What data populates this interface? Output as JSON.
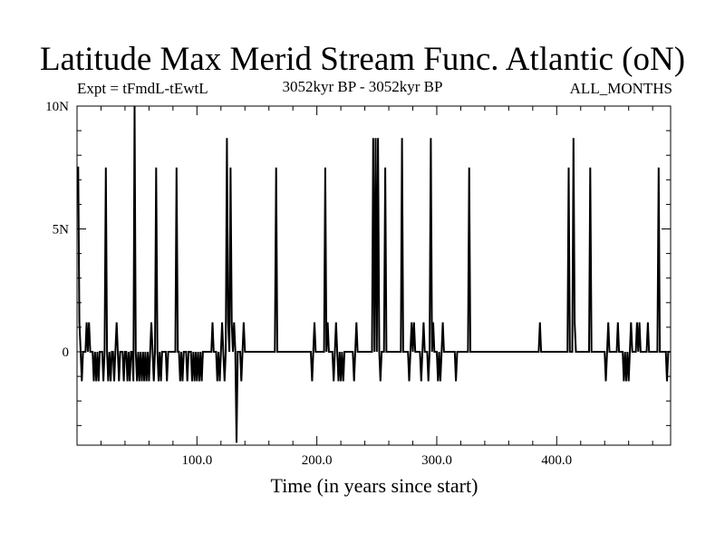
{
  "chart_data": {
    "type": "line",
    "title": "Latitude Max Merid Stream Func. Atlantic (oN)",
    "subtitle_left": "Expt = tFmdL-tEwtL",
    "subtitle_center": "3052kyr BP - 3052kyr BP",
    "subtitle_right": "ALL_MONTHS",
    "xlabel": "Time (in years since start)",
    "ylabel": "",
    "xlim": [
      0,
      495
    ],
    "ylim": [
      -3.8,
      10
    ],
    "x_ticks": [
      {
        "value": 100,
        "label": "100.0"
      },
      {
        "value": 200,
        "label": "200.0"
      },
      {
        "value": 300,
        "label": "300.0"
      },
      {
        "value": 400,
        "label": "400.0"
      }
    ],
    "y_ticks": [
      {
        "value": 0,
        "label": "0"
      },
      {
        "value": 5,
        "label": "5N"
      },
      {
        "value": 10,
        "label": "10N"
      }
    ],
    "grid": false,
    "series": [
      {
        "color": "#000000",
        "points": [
          [
            0,
            7.5
          ],
          [
            1,
            7.5
          ],
          [
            2,
            1.2
          ],
          [
            3,
            0
          ],
          [
            4,
            -1.2
          ],
          [
            5,
            0
          ],
          [
            7,
            0
          ],
          [
            8,
            1.2
          ],
          [
            9,
            0
          ],
          [
            10,
            1.2
          ],
          [
            11,
            0
          ],
          [
            13,
            0
          ],
          [
            14,
            -1.2
          ],
          [
            15,
            0
          ],
          [
            16,
            -1.2
          ],
          [
            17,
            0
          ],
          [
            18,
            -1.2
          ],
          [
            19,
            0
          ],
          [
            21,
            0
          ],
          [
            22,
            -1.2
          ],
          [
            23,
            0
          ],
          [
            24,
            7.5
          ],
          [
            25,
            0
          ],
          [
            26,
            -1.2
          ],
          [
            27,
            0
          ],
          [
            28,
            -1.2
          ],
          [
            29,
            0
          ],
          [
            30,
            0
          ],
          [
            31,
            -1.2
          ],
          [
            32,
            0
          ],
          [
            33,
            1.2
          ],
          [
            34,
            0
          ],
          [
            35,
            -1.2
          ],
          [
            36,
            0
          ],
          [
            38,
            0
          ],
          [
            39,
            -1.2
          ],
          [
            40,
            0
          ],
          [
            41,
            0
          ],
          [
            42,
            -1.2
          ],
          [
            43,
            0
          ],
          [
            44,
            -1.2
          ],
          [
            45,
            0
          ],
          [
            46,
            0
          ],
          [
            47,
            -1.2
          ],
          [
            48,
            10
          ],
          [
            49,
            0
          ],
          [
            50,
            -1.2
          ],
          [
            51,
            0
          ],
          [
            52,
            -1.2
          ],
          [
            53,
            0
          ],
          [
            54,
            -1.2
          ],
          [
            55,
            0
          ],
          [
            56,
            -1.2
          ],
          [
            57,
            0
          ],
          [
            58,
            -1.2
          ],
          [
            59,
            0
          ],
          [
            60,
            -1.2
          ],
          [
            61,
            0
          ],
          [
            62,
            1.2
          ],
          [
            63,
            0
          ],
          [
            64,
            -1.2
          ],
          [
            65,
            0
          ],
          [
            66,
            7.5
          ],
          [
            67,
            0
          ],
          [
            68,
            -1.2
          ],
          [
            69,
            0
          ],
          [
            70,
            -1.2
          ],
          [
            71,
            0
          ],
          [
            74,
            0
          ],
          [
            75,
            -1.2
          ],
          [
            76,
            0
          ],
          [
            82,
            0
          ],
          [
            83,
            7.5
          ],
          [
            84,
            0
          ],
          [
            85,
            0
          ],
          [
            86,
            -1.2
          ],
          [
            87,
            0
          ],
          [
            88,
            -1.2
          ],
          [
            89,
            0
          ],
          [
            91,
            0
          ],
          [
            92,
            -1.2
          ],
          [
            93,
            0
          ],
          [
            95,
            0
          ],
          [
            96,
            -1.2
          ],
          [
            97,
            0
          ],
          [
            98,
            -1.2
          ],
          [
            99,
            0
          ],
          [
            100,
            -1.2
          ],
          [
            101,
            0
          ],
          [
            102,
            -1.2
          ],
          [
            103,
            0
          ],
          [
            104,
            -1.2
          ],
          [
            105,
            0
          ],
          [
            112,
            0
          ],
          [
            113,
            1.2
          ],
          [
            114,
            0
          ],
          [
            116,
            0
          ],
          [
            117,
            -1.2
          ],
          [
            118,
            0
          ],
          [
            119,
            -1.2
          ],
          [
            120,
            0
          ],
          [
            121,
            1.2
          ],
          [
            122,
            0
          ],
          [
            123,
            -1.2
          ],
          [
            124,
            0
          ],
          [
            125,
            8.7
          ],
          [
            126,
            1.2
          ],
          [
            127,
            0
          ],
          [
            128,
            7.5
          ],
          [
            129,
            1.2
          ],
          [
            130,
            0
          ],
          [
            131,
            1.2
          ],
          [
            132,
            0
          ],
          [
            133,
            -3.7
          ],
          [
            134,
            0
          ],
          [
            136,
            0
          ],
          [
            137,
            -1.2
          ],
          [
            138,
            0
          ],
          [
            139,
            1.2
          ],
          [
            140,
            0
          ],
          [
            165,
            0
          ],
          [
            166,
            7.5
          ],
          [
            167,
            0
          ],
          [
            195,
            0
          ],
          [
            196,
            -1.2
          ],
          [
            197,
            0
          ],
          [
            198,
            1.2
          ],
          [
            199,
            0
          ],
          [
            206,
            0
          ],
          [
            207,
            7.5
          ],
          [
            208,
            0
          ],
          [
            209,
            1.2
          ],
          [
            210,
            0
          ],
          [
            213,
            0
          ],
          [
            214,
            -1.2
          ],
          [
            215,
            0
          ],
          [
            216,
            1.2
          ],
          [
            217,
            0
          ],
          [
            218,
            -1.2
          ],
          [
            219,
            0
          ],
          [
            220,
            -1.2
          ],
          [
            221,
            0
          ],
          [
            222,
            -1.2
          ],
          [
            223,
            0
          ],
          [
            230,
            0
          ],
          [
            231,
            -1.2
          ],
          [
            232,
            0
          ],
          [
            233,
            1.2
          ],
          [
            234,
            0
          ],
          [
            246,
            0
          ],
          [
            247,
            8.7
          ],
          [
            248,
            0
          ],
          [
            249,
            8.7
          ],
          [
            250,
            0
          ],
          [
            251,
            8.7
          ],
          [
            252,
            0
          ],
          [
            253,
            -1.2
          ],
          [
            254,
            0
          ],
          [
            256,
            0
          ],
          [
            257,
            7.5
          ],
          [
            258,
            0
          ],
          [
            270,
            0
          ],
          [
            271,
            8.7
          ],
          [
            272,
            0
          ],
          [
            276,
            0
          ],
          [
            277,
            -1.2
          ],
          [
            278,
            0
          ],
          [
            279,
            1.2
          ],
          [
            280,
            0
          ],
          [
            281,
            1.2
          ],
          [
            282,
            0
          ],
          [
            286,
            0
          ],
          [
            287,
            -1.2
          ],
          [
            288,
            0
          ],
          [
            289,
            1.2
          ],
          [
            290,
            0
          ],
          [
            292,
            0
          ],
          [
            293,
            -1.2
          ],
          [
            294,
            0
          ],
          [
            295,
            8.7
          ],
          [
            296,
            0
          ],
          [
            297,
            1.2
          ],
          [
            298,
            0
          ],
          [
            300,
            0
          ],
          [
            301,
            -1.2
          ],
          [
            302,
            0
          ],
          [
            303,
            -1.2
          ],
          [
            304,
            0
          ],
          [
            305,
            1.2
          ],
          [
            306,
            0
          ],
          [
            315,
            0
          ],
          [
            316,
            -1.2
          ],
          [
            317,
            0
          ],
          [
            326,
            0
          ],
          [
            327,
            7.5
          ],
          [
            328,
            0
          ],
          [
            385,
            0
          ],
          [
            386,
            1.2
          ],
          [
            387,
            0
          ],
          [
            409,
            0
          ],
          [
            410,
            7.5
          ],
          [
            411,
            0
          ],
          [
            413,
            0
          ],
          [
            414,
            8.7
          ],
          [
            415,
            1.2
          ],
          [
            416,
            0
          ],
          [
            427,
            0
          ],
          [
            428,
            7.5
          ],
          [
            429,
            0
          ],
          [
            440,
            0
          ],
          [
            441,
            -1.2
          ],
          [
            442,
            0
          ],
          [
            443,
            1.2
          ],
          [
            444,
            0
          ],
          [
            450,
            0
          ],
          [
            451,
            1.2
          ],
          [
            452,
            0
          ],
          [
            455,
            0
          ],
          [
            456,
            -1.2
          ],
          [
            457,
            0
          ],
          [
            458,
            -1.2
          ],
          [
            459,
            0
          ],
          [
            460,
            -1.2
          ],
          [
            461,
            0
          ],
          [
            462,
            1.2
          ],
          [
            463,
            0
          ],
          [
            466,
            0
          ],
          [
            467,
            1.2
          ],
          [
            468,
            0
          ],
          [
            469,
            1.2
          ],
          [
            470,
            0
          ],
          [
            475,
            0
          ],
          [
            476,
            1.2
          ],
          [
            477,
            0
          ],
          [
            484,
            0
          ],
          [
            485,
            7.5
          ],
          [
            486,
            0
          ],
          [
            491,
            0
          ],
          [
            492,
            -1.2
          ],
          [
            493,
            0
          ],
          [
            495,
            0
          ]
        ]
      }
    ]
  }
}
